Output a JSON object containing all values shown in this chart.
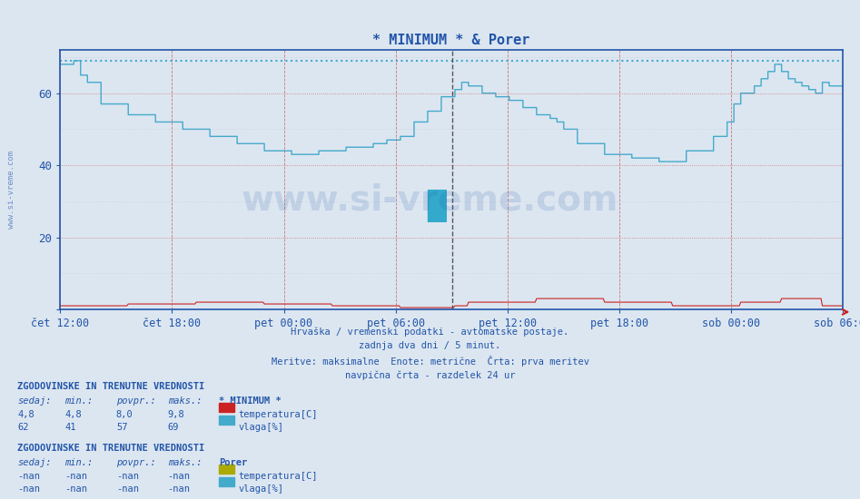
{
  "title": "* MINIMUM * & Porer",
  "bg_color": "#dce6f0",
  "plot_bg_color": "#dce6f0",
  "fig_bg_color": "#dce6f0",
  "ylim": [
    0,
    72
  ],
  "yticks": [
    0,
    20,
    40,
    60
  ],
  "xlabel_color": "#2255aa",
  "ylabel_color": "#2255aa",
  "title_color": "#2255aa",
  "title_fontsize": 11,
  "xticklabels": [
    "čet 12:00",
    "čet 18:00",
    "pet 00:00",
    "pet 06:00",
    "pet 12:00",
    "pet 18:00",
    "sob 00:00",
    "sob 06:00"
  ],
  "humidity_color": "#44aacc",
  "temp_color": "#cc2222",
  "max_line_color": "#44aacc",
  "max_line_value": 69,
  "watermark": "www.si-vreme.com",
  "subtitle_lines": [
    "Hrvaška / vremenski podatki - avtomatske postaje.",
    "zadnja dva dni / 5 minut.",
    "Meritve: maksimalne  Enote: metrične  Črta: prva meritev",
    "navpična črta - razdelek 24 ur"
  ],
  "table1_header": "ZGODOVINSKE IN TRENUTNE VREDNOSTI",
  "table1_cols": [
    "sedaj:",
    "min.:",
    "povpr.:",
    "maks.:"
  ],
  "table1_station": "* MINIMUM *",
  "table1_row1": [
    "4,8",
    "4,8",
    "8,0",
    "9,8"
  ],
  "table1_row1_label": "temperatura[C]",
  "table1_row1_color": "#cc2222",
  "table1_row2": [
    "62",
    "41",
    "57",
    "69"
  ],
  "table1_row2_label": "vlaga[%]",
  "table1_row2_color": "#44aacc",
  "table2_header": "ZGODOVINSKE IN TRENUTNE VREDNOSTI",
  "table2_station": "Porer",
  "table2_row1": [
    "-nan",
    "-nan",
    "-nan",
    "-nan"
  ],
  "table2_row1_label": "temperatura[C]",
  "table2_row1_color": "#aaaa00",
  "table2_row2": [
    "-nan",
    "-nan",
    "-nan",
    "-nan"
  ],
  "table2_row2_label": "vlaga[%]",
  "table2_row2_color": "#44aacc",
  "n_points": 576
}
